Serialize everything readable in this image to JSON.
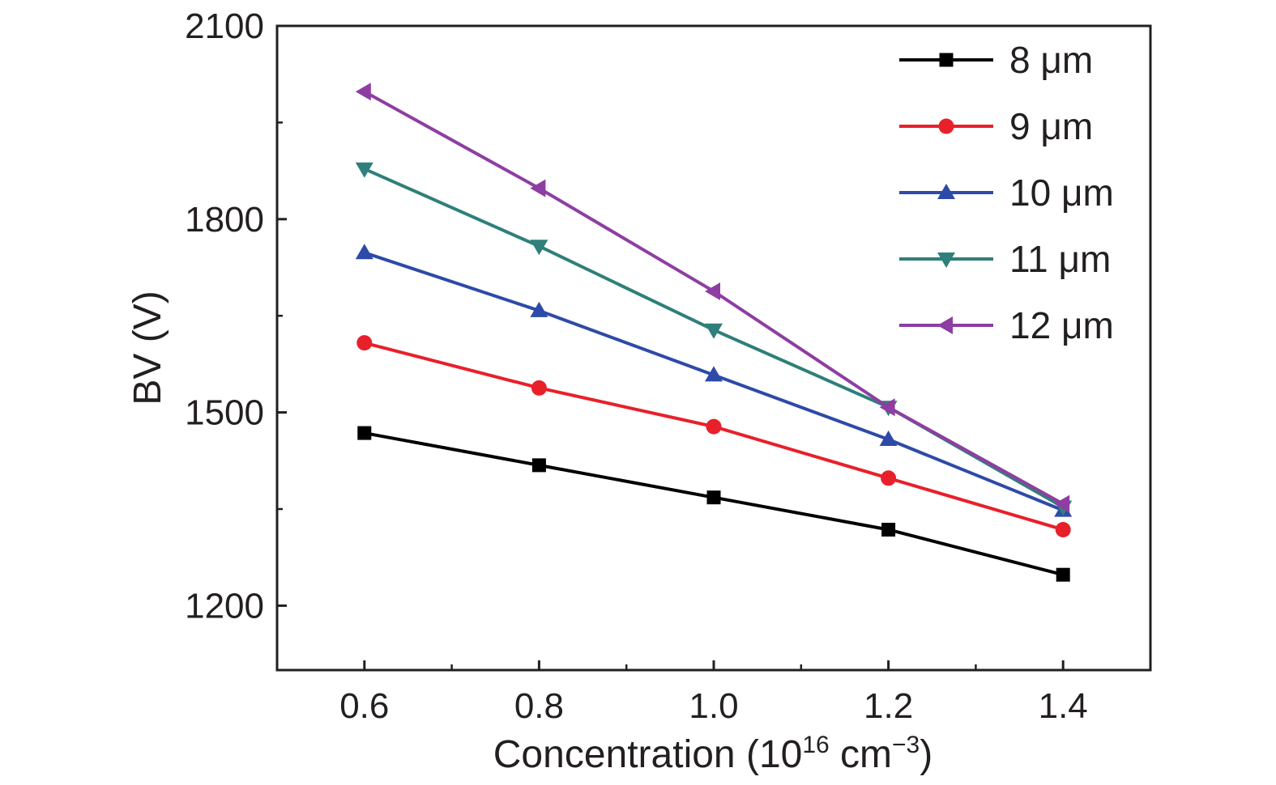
{
  "chart_data": {
    "type": "line",
    "title": "",
    "xlabel": "Concentration (10",
    "xlabel_sup": "16",
    "xlabel_unit": " cm",
    "xlabel_unit_sup": "−3",
    "xlabel_close": ")",
    "ylabel": "BV (V)",
    "xlim": [
      0.5,
      1.5
    ],
    "ylim": [
      1100,
      2100
    ],
    "x": [
      0.6,
      0.8,
      1.0,
      1.2,
      1.4
    ],
    "x_tick_labels": [
      "0.6",
      "0.8",
      "1.0",
      "1.2",
      "1.4"
    ],
    "y_ticks": [
      1200,
      1500,
      1800,
      2100
    ],
    "y_tick_labels": [
      "1200",
      "1500",
      "1800",
      "2100"
    ],
    "grid": false,
    "legend_position": "top-right",
    "series": [
      {
        "name": "8 μm",
        "marker": "square",
        "color": "#000000",
        "values": [
          1468,
          1418,
          1368,
          1318,
          1248
        ]
      },
      {
        "name": "9 μm",
        "marker": "circle",
        "color": "#e8202a",
        "values": [
          1608,
          1538,
          1478,
          1398,
          1318
        ]
      },
      {
        "name": "10 μm",
        "marker": "triangle-up",
        "color": "#2e4aa8",
        "values": [
          1748,
          1658,
          1558,
          1458,
          1348
        ]
      },
      {
        "name": "11 μm",
        "marker": "triangle-down",
        "color": "#2f7f7a",
        "values": [
          1878,
          1758,
          1628,
          1508,
          1353
        ]
      },
      {
        "name": "12 μm",
        "marker": "triangle-left",
        "color": "#8e3ea2",
        "values": [
          1998,
          1848,
          1688,
          1508,
          1358
        ]
      }
    ]
  }
}
